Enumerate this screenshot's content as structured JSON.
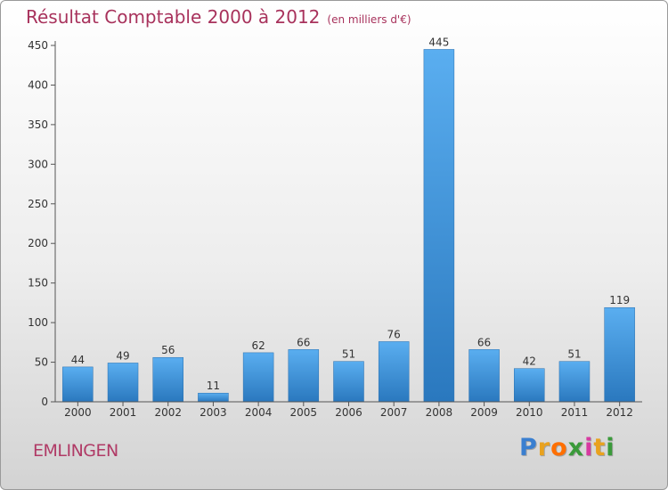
{
  "chart_data": {
    "type": "bar",
    "title": "Résultat Comptable 2000 à 2012",
    "subtitle": "(en milliers d'€)",
    "categories": [
      "2000",
      "2001",
      "2002",
      "2003",
      "2004",
      "2005",
      "2006",
      "2007",
      "2008",
      "2009",
      "2010",
      "2011",
      "2012"
    ],
    "values": [
      44,
      49,
      56,
      11,
      62,
      66,
      51,
      76,
      445,
      66,
      42,
      51,
      119
    ],
    "ylim": [
      0,
      450
    ],
    "yticks": [
      0,
      50,
      100,
      150,
      200,
      250,
      300,
      350,
      400,
      450
    ],
    "xlabel": "",
    "ylabel": "",
    "grid": false,
    "bar_color": "#3d8fd4"
  },
  "footer": {
    "commune": "EMLINGEN",
    "logo_letters": [
      "P",
      "r",
      "o",
      "x",
      "i",
      "t",
      "i"
    ],
    "logo_colors": [
      "#3a7fd0",
      "#e9a21e",
      "#ff6f00",
      "#3a9a3a",
      "#d63aa0",
      "#e9a21e",
      "#3a9a3a"
    ]
  }
}
